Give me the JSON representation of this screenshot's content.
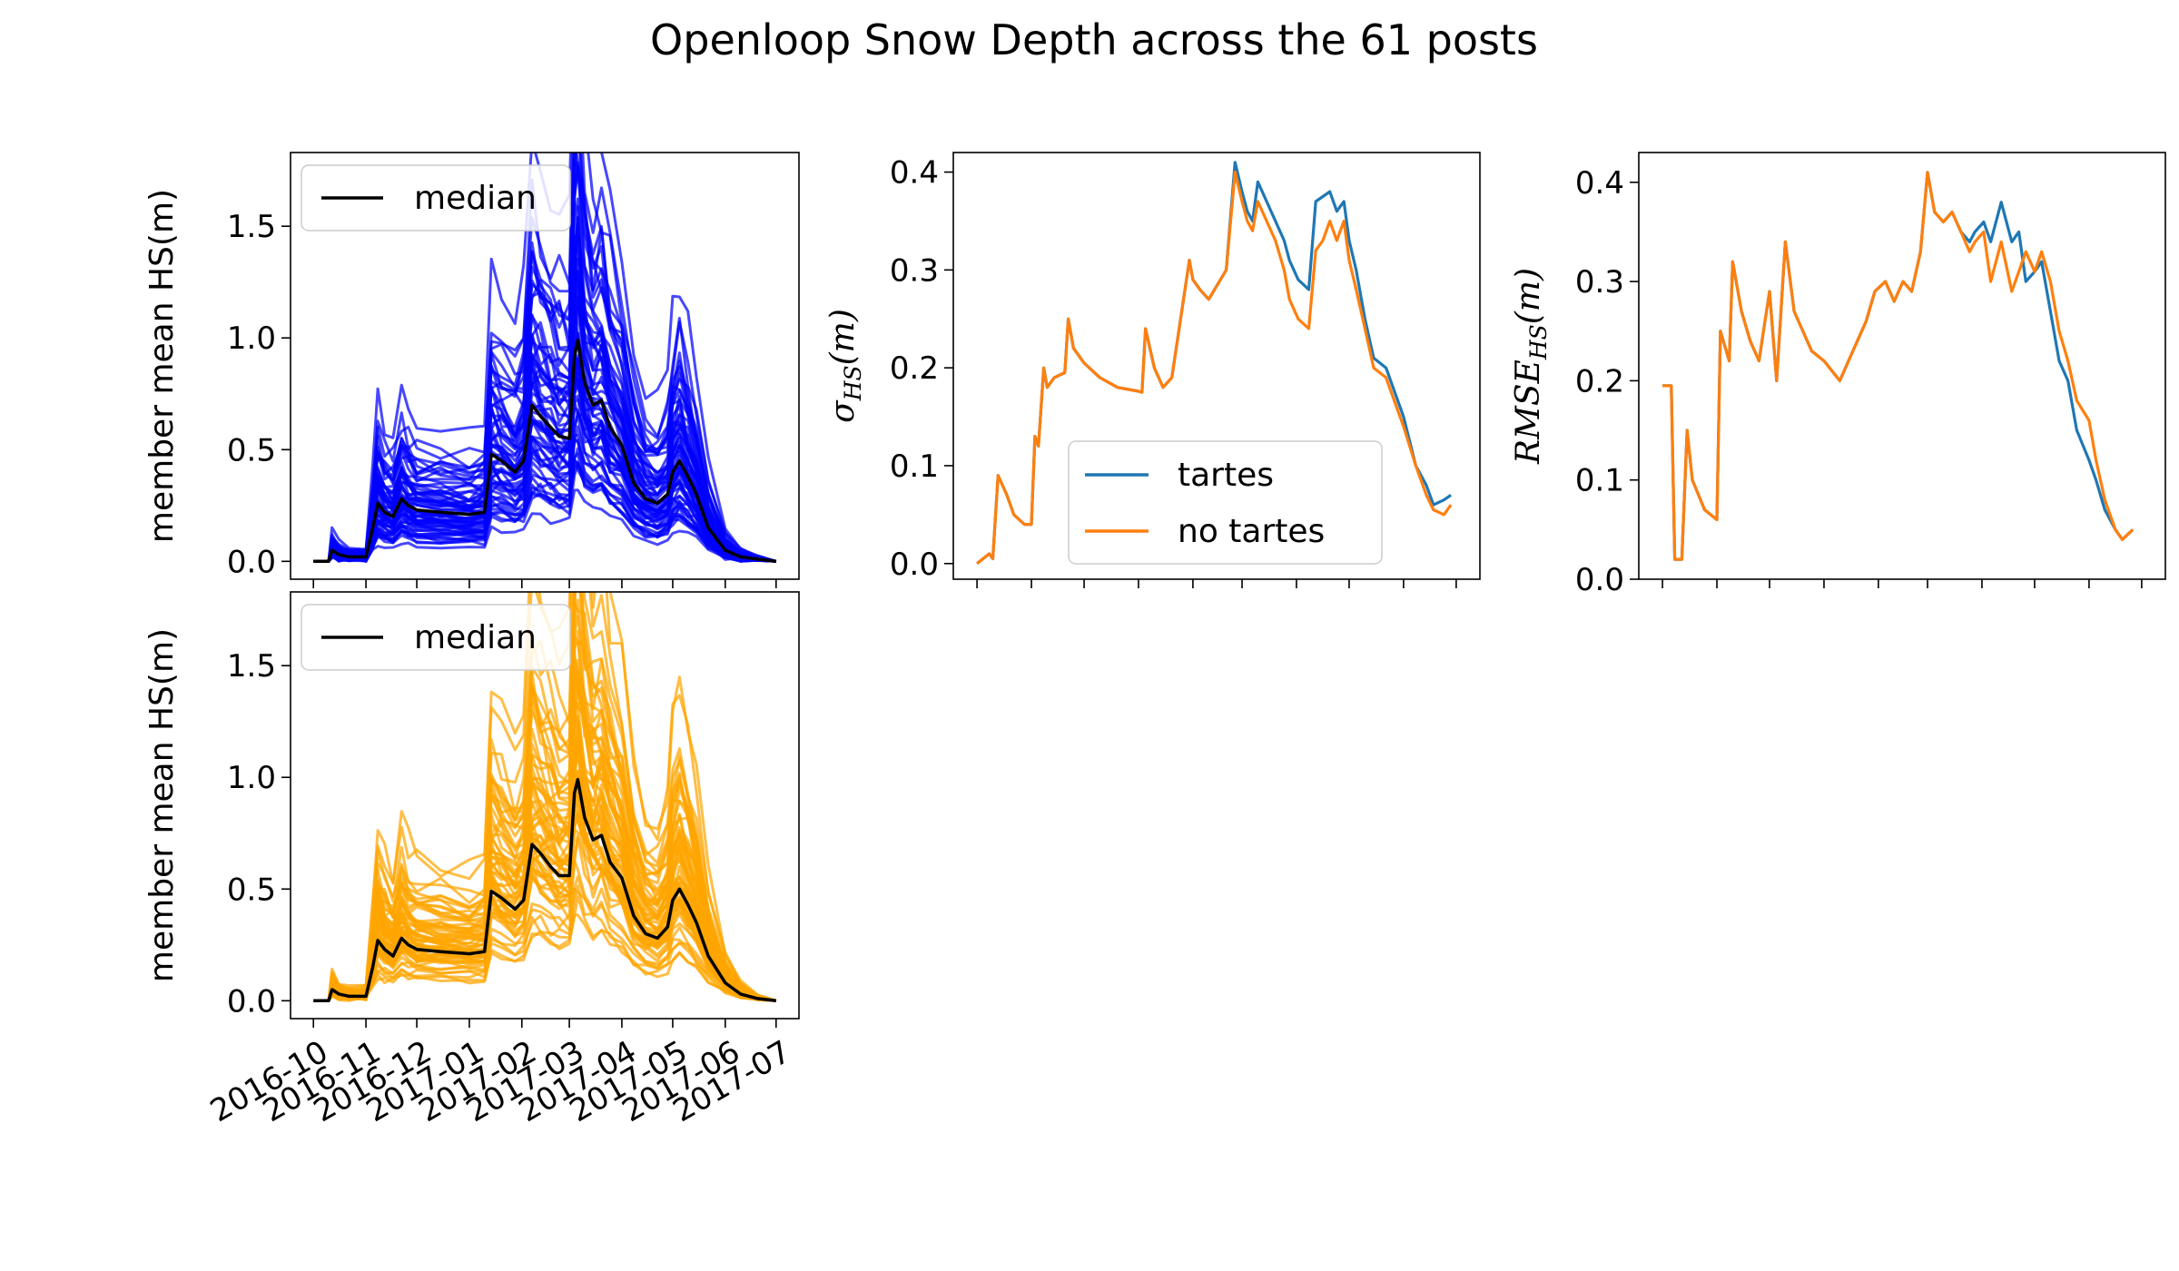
{
  "figure": {
    "title": "Openloop Snow Depth across the 61 posts"
  },
  "colors": {
    "tartes": "#1f77b4",
    "no_tartes": "#ff7f0e",
    "ensemble_top": "#0000ff",
    "ensemble_bottom": "#ffa500",
    "median": "#000000"
  },
  "chart_data": [
    {
      "id": "tartes-ensemble",
      "type": "line",
      "title": "",
      "xlabel": "",
      "ylabel": "member mean HS(m)",
      "xlim": [
        "2016-10-01",
        "2017-07-01"
      ],
      "ylim": [
        -0.08,
        1.83
      ],
      "yticks": [
        "0.0",
        "0.5",
        "1.0",
        "1.5"
      ],
      "xticks": [],
      "grid": false,
      "legend": {
        "position": "upper-left",
        "entries": [
          "median"
        ]
      },
      "ensemble_members": 61,
      "series": [
        {
          "name": "median",
          "x": [
            "2016-10-01",
            "2016-10-10",
            "2016-10-12",
            "2016-10-16",
            "2016-10-22",
            "2016-11-01",
            "2016-11-05",
            "2016-11-08",
            "2016-11-12",
            "2016-11-17",
            "2016-11-22",
            "2016-11-26",
            "2016-12-01",
            "2016-12-15",
            "2017-01-01",
            "2017-01-10",
            "2017-01-14",
            "2017-01-20",
            "2017-01-28",
            "2017-02-02",
            "2017-02-07",
            "2017-02-12",
            "2017-02-18",
            "2017-02-23",
            "2017-03-01",
            "2017-03-04",
            "2017-03-06",
            "2017-03-10",
            "2017-03-15",
            "2017-03-20",
            "2017-03-25",
            "2017-04-01",
            "2017-04-08",
            "2017-04-15",
            "2017-04-22",
            "2017-04-28",
            "2017-05-01",
            "2017-05-05",
            "2017-05-10",
            "2017-05-15",
            "2017-05-22",
            "2017-06-01",
            "2017-06-10",
            "2017-06-20",
            "2017-07-01"
          ],
          "y": [
            0.0,
            0.0,
            0.05,
            0.03,
            0.02,
            0.02,
            0.15,
            0.26,
            0.22,
            0.2,
            0.28,
            0.25,
            0.23,
            0.22,
            0.21,
            0.22,
            0.48,
            0.45,
            0.4,
            0.45,
            0.7,
            0.65,
            0.6,
            0.56,
            0.55,
            0.92,
            0.99,
            0.8,
            0.7,
            0.72,
            0.6,
            0.52,
            0.35,
            0.28,
            0.26,
            0.3,
            0.4,
            0.45,
            0.38,
            0.3,
            0.15,
            0.05,
            0.02,
            0.01,
            0.0
          ]
        }
      ]
    },
    {
      "id": "no-tartes-ensemble",
      "type": "line",
      "title": "",
      "xlabel": "",
      "ylabel": "member mean HS(m)",
      "xlim": [
        "2016-10-01",
        "2017-07-01"
      ],
      "ylim": [
        -0.08,
        1.83
      ],
      "yticks": [
        "0.0",
        "0.5",
        "1.0",
        "1.5"
      ],
      "xticks": [
        "2016-10",
        "2016-11",
        "2016-12",
        "2017-01",
        "2017-02",
        "2017-03",
        "2017-04",
        "2017-05",
        "2017-06",
        "2017-07"
      ],
      "grid": false,
      "legend": {
        "position": "upper-left",
        "entries": [
          "median"
        ]
      },
      "ensemble_members": 61,
      "series": [
        {
          "name": "median",
          "x": [
            "2016-10-01",
            "2016-10-10",
            "2016-10-12",
            "2016-10-16",
            "2016-10-22",
            "2016-11-01",
            "2016-11-05",
            "2016-11-08",
            "2016-11-12",
            "2016-11-17",
            "2016-11-22",
            "2016-11-26",
            "2016-12-01",
            "2016-12-15",
            "2017-01-01",
            "2017-01-10",
            "2017-01-14",
            "2017-01-20",
            "2017-01-28",
            "2017-02-02",
            "2017-02-07",
            "2017-02-12",
            "2017-02-18",
            "2017-02-23",
            "2017-03-01",
            "2017-03-04",
            "2017-03-06",
            "2017-03-10",
            "2017-03-15",
            "2017-03-20",
            "2017-03-25",
            "2017-04-01",
            "2017-04-08",
            "2017-04-15",
            "2017-04-22",
            "2017-04-28",
            "2017-05-01",
            "2017-05-05",
            "2017-05-10",
            "2017-05-15",
            "2017-05-22",
            "2017-06-01",
            "2017-06-10",
            "2017-06-20",
            "2017-07-01"
          ],
          "y": [
            0.0,
            0.0,
            0.05,
            0.03,
            0.02,
            0.02,
            0.15,
            0.27,
            0.23,
            0.2,
            0.28,
            0.25,
            0.23,
            0.22,
            0.21,
            0.22,
            0.49,
            0.46,
            0.41,
            0.45,
            0.7,
            0.66,
            0.6,
            0.56,
            0.56,
            0.93,
            0.99,
            0.82,
            0.72,
            0.74,
            0.62,
            0.55,
            0.38,
            0.3,
            0.28,
            0.33,
            0.45,
            0.5,
            0.43,
            0.35,
            0.2,
            0.08,
            0.03,
            0.01,
            0.0
          ]
        }
      ]
    },
    {
      "id": "sigma-hs",
      "type": "line",
      "title": "",
      "xlabel": "",
      "ylabel": "σ_HS(m)",
      "xlim": [
        "2016-10-01",
        "2017-07-01"
      ],
      "ylim": [
        -0.016,
        0.42
      ],
      "yticks": [
        "0.0",
        "0.1",
        "0.2",
        "0.3",
        "0.4"
      ],
      "xticks": [],
      "grid": false,
      "legend": {
        "position": "lower-center",
        "entries": [
          "tartes",
          "no tartes"
        ]
      },
      "x": [
        "2016-10-01",
        "2016-10-08",
        "2016-10-10",
        "2016-10-13",
        "2016-10-18",
        "2016-10-22",
        "2016-10-28",
        "2016-11-01",
        "2016-11-03",
        "2016-11-05",
        "2016-11-08",
        "2016-11-10",
        "2016-11-14",
        "2016-11-20",
        "2016-11-22",
        "2016-11-25",
        "2016-12-01",
        "2016-12-10",
        "2016-12-20",
        "2017-01-01",
        "2017-01-03",
        "2017-01-05",
        "2017-01-10",
        "2017-01-15",
        "2017-01-20",
        "2017-01-30",
        "2017-02-01",
        "2017-02-05",
        "2017-02-10",
        "2017-02-20",
        "2017-02-25",
        "2017-03-01",
        "2017-03-04",
        "2017-03-07",
        "2017-03-10",
        "2017-03-15",
        "2017-03-20",
        "2017-03-25",
        "2017-03-28",
        "2017-04-02",
        "2017-04-08",
        "2017-04-12",
        "2017-04-16",
        "2017-04-20",
        "2017-04-24",
        "2017-04-28",
        "2017-05-01",
        "2017-05-05",
        "2017-05-10",
        "2017-05-15",
        "2017-05-22",
        "2017-06-01",
        "2017-06-08",
        "2017-06-14",
        "2017-06-18",
        "2017-06-24",
        "2017-06-28"
      ],
      "series": [
        {
          "name": "tartes",
          "y": [
            0.0,
            0.01,
            0.005,
            0.09,
            0.07,
            0.05,
            0.04,
            0.04,
            0.13,
            0.12,
            0.2,
            0.18,
            0.19,
            0.195,
            0.25,
            0.22,
            0.205,
            0.19,
            0.18,
            0.176,
            0.175,
            0.24,
            0.2,
            0.18,
            0.19,
            0.31,
            0.29,
            0.28,
            0.27,
            0.3,
            0.41,
            0.38,
            0.36,
            0.35,
            0.39,
            0.37,
            0.35,
            0.33,
            0.31,
            0.29,
            0.28,
            0.37,
            0.375,
            0.38,
            0.36,
            0.37,
            0.33,
            0.3,
            0.25,
            0.21,
            0.2,
            0.15,
            0.1,
            0.08,
            0.06,
            0.065,
            0.07
          ]
        },
        {
          "name": "no tartes",
          "y": [
            0.0,
            0.01,
            0.005,
            0.09,
            0.07,
            0.05,
            0.04,
            0.04,
            0.13,
            0.12,
            0.2,
            0.18,
            0.19,
            0.195,
            0.25,
            0.22,
            0.205,
            0.19,
            0.18,
            0.176,
            0.175,
            0.24,
            0.2,
            0.18,
            0.19,
            0.31,
            0.29,
            0.28,
            0.27,
            0.3,
            0.4,
            0.37,
            0.35,
            0.34,
            0.37,
            0.35,
            0.33,
            0.3,
            0.27,
            0.25,
            0.24,
            0.32,
            0.33,
            0.35,
            0.33,
            0.35,
            0.31,
            0.28,
            0.24,
            0.2,
            0.19,
            0.14,
            0.1,
            0.07,
            0.055,
            0.05,
            0.06
          ]
        }
      ]
    },
    {
      "id": "rmse-hs",
      "type": "line",
      "title": "",
      "xlabel": "",
      "ylabel": "RMSE_HS(m)",
      "xlim": [
        "2016-10-01",
        "2017-07-01"
      ],
      "ylim": [
        0.0,
        0.43
      ],
      "yticks": [
        "0.0",
        "0.1",
        "0.2",
        "0.3",
        "0.4"
      ],
      "xticks": [],
      "grid": false,
      "legend": null,
      "x": [
        "2016-10-01",
        "2016-10-06",
        "2016-10-08",
        "2016-10-12",
        "2016-10-15",
        "2016-10-18",
        "2016-10-25",
        "2016-11-01",
        "2016-11-03",
        "2016-11-08",
        "2016-11-10",
        "2016-11-15",
        "2016-11-20",
        "2016-11-25",
        "2016-12-01",
        "2016-12-05",
        "2016-12-10",
        "2016-12-15",
        "2016-12-25",
        "2017-01-01",
        "2017-01-10",
        "2017-01-15",
        "2017-01-20",
        "2017-01-25",
        "2017-01-30",
        "2017-02-05",
        "2017-02-10",
        "2017-02-15",
        "2017-02-20",
        "2017-02-25",
        "2017-03-01",
        "2017-03-05",
        "2017-03-10",
        "2017-03-15",
        "2017-03-20",
        "2017-03-25",
        "2017-03-28",
        "2017-04-02",
        "2017-04-06",
        "2017-04-12",
        "2017-04-18",
        "2017-04-22",
        "2017-04-26",
        "2017-05-01",
        "2017-05-05",
        "2017-05-10",
        "2017-05-15",
        "2017-05-20",
        "2017-05-25",
        "2017-06-01",
        "2017-06-05",
        "2017-06-10",
        "2017-06-16",
        "2017-06-20",
        "2017-06-26"
      ],
      "series": [
        {
          "name": "tartes",
          "y": [
            0.195,
            0.195,
            0.02,
            0.02,
            0.15,
            0.1,
            0.07,
            0.06,
            0.25,
            0.22,
            0.32,
            0.27,
            0.24,
            0.22,
            0.29,
            0.2,
            0.34,
            0.27,
            0.23,
            0.22,
            0.2,
            0.22,
            0.24,
            0.26,
            0.29,
            0.3,
            0.28,
            0.3,
            0.29,
            0.33,
            0.41,
            0.37,
            0.36,
            0.37,
            0.35,
            0.34,
            0.35,
            0.36,
            0.34,
            0.38,
            0.34,
            0.35,
            0.3,
            0.31,
            0.32,
            0.27,
            0.22,
            0.2,
            0.15,
            0.12,
            0.1,
            0.07,
            0.05,
            0.04,
            0.05
          ]
        },
        {
          "name": "no tartes",
          "y": [
            0.195,
            0.195,
            0.02,
            0.02,
            0.15,
            0.1,
            0.07,
            0.06,
            0.25,
            0.22,
            0.32,
            0.27,
            0.24,
            0.22,
            0.29,
            0.2,
            0.34,
            0.27,
            0.23,
            0.22,
            0.2,
            0.22,
            0.24,
            0.26,
            0.29,
            0.3,
            0.28,
            0.3,
            0.29,
            0.33,
            0.41,
            0.37,
            0.36,
            0.37,
            0.35,
            0.33,
            0.34,
            0.35,
            0.3,
            0.34,
            0.29,
            0.31,
            0.33,
            0.31,
            0.33,
            0.3,
            0.25,
            0.22,
            0.18,
            0.16,
            0.12,
            0.08,
            0.05,
            0.04,
            0.05
          ]
        }
      ]
    }
  ]
}
